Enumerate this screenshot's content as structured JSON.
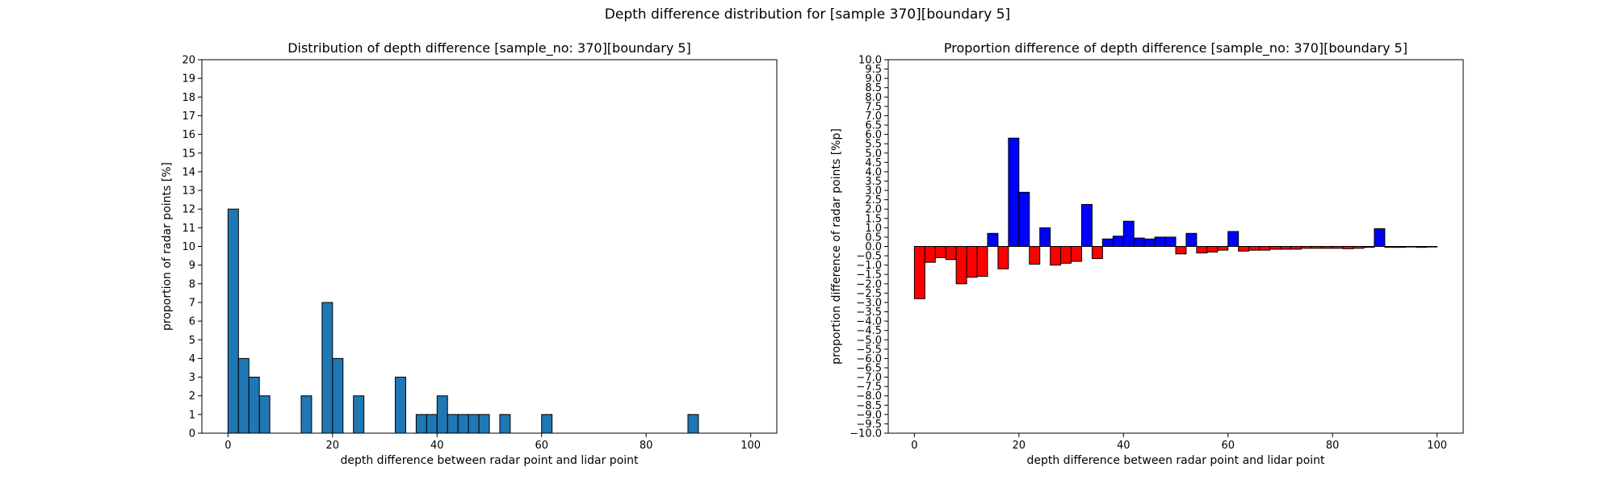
{
  "figure": {
    "suptitle": "Depth difference distribution for [sample 370][boundary 5]"
  },
  "chart_data": [
    {
      "type": "bar",
      "title": "Distribution of depth difference [sample_no: 370][boundary 5]",
      "xlabel": "depth difference between radar point and lidar point",
      "ylabel": "proportion of radar points [%]",
      "xlim": [
        -5,
        105
      ],
      "ylim": [
        0,
        20
      ],
      "xticks": [
        0,
        20,
        40,
        60,
        80,
        100
      ],
      "yticks": [
        0,
        1,
        2,
        3,
        4,
        5,
        6,
        7,
        8,
        9,
        10,
        11,
        12,
        13,
        14,
        15,
        16,
        17,
        18,
        19,
        20
      ],
      "bin_width": 2,
      "bars": [
        {
          "x": 0,
          "value": 12
        },
        {
          "x": 2,
          "value": 4
        },
        {
          "x": 4,
          "value": 3
        },
        {
          "x": 6,
          "value": 2
        },
        {
          "x": 14,
          "value": 2
        },
        {
          "x": 18,
          "value": 7
        },
        {
          "x": 20,
          "value": 4
        },
        {
          "x": 24,
          "value": 2
        },
        {
          "x": 32,
          "value": 3
        },
        {
          "x": 36,
          "value": 1
        },
        {
          "x": 38,
          "value": 1
        },
        {
          "x": 40,
          "value": 2
        },
        {
          "x": 42,
          "value": 1
        },
        {
          "x": 44,
          "value": 1
        },
        {
          "x": 46,
          "value": 1
        },
        {
          "x": 48,
          "value": 1
        },
        {
          "x": 52,
          "value": 1
        },
        {
          "x": 60,
          "value": 1
        },
        {
          "x": 88,
          "value": 1
        }
      ],
      "colors": {
        "bar": "#1f77b4",
        "edge": "#000000"
      },
      "grid": false
    },
    {
      "type": "bar",
      "title": "Proportion difference of depth difference [sample_no: 370][boundary 5]",
      "xlabel": "depth difference between radar point and lidar point",
      "ylabel": "proportion difference of radar points [%p]",
      "xlim": [
        -5,
        105
      ],
      "ylim": [
        -10,
        10
      ],
      "xticks": [
        0,
        20,
        40,
        60,
        80,
        100
      ],
      "yticks": [
        10.0,
        9.5,
        9.0,
        8.5,
        8.0,
        7.5,
        7.0,
        6.5,
        6.0,
        5.5,
        5.0,
        4.5,
        4.0,
        3.5,
        3.0,
        2.5,
        2.0,
        1.5,
        1.0,
        0.5,
        0.0,
        -0.5,
        -1.0,
        -1.5,
        -2.0,
        -2.5,
        -3.0,
        -3.5,
        -4.0,
        -4.5,
        -5.0,
        -5.5,
        -6.0,
        -6.5,
        -7.0,
        -7.5,
        -8.0,
        -8.5,
        -9.0,
        -9.5,
        -10.0
      ],
      "ytick_labels": [
        "10.0",
        "9.5",
        "9.0",
        "8.5",
        "8.0",
        "7.5",
        "7.0",
        "6.5",
        "6.0",
        "5.5",
        "5.0",
        "4.5",
        "4.0",
        "3.5",
        "3.0",
        "2.5",
        "2.0",
        "1.5",
        "1.0",
        "0.5",
        "0.0",
        "−0.5",
        "−1.0",
        "−1.5",
        "−2.0",
        "−2.5",
        "−3.0",
        "−3.5",
        "−4.0",
        "−4.5",
        "−5.0",
        "−5.5",
        "−6.0",
        "−6.5",
        "−7.0",
        "−7.5",
        "−8.0",
        "−8.5",
        "−9.0",
        "−9.5",
        "−10.0"
      ],
      "bin_width": 2,
      "bars": [
        {
          "x": 0,
          "value": -2.8
        },
        {
          "x": 2,
          "value": -0.85
        },
        {
          "x": 4,
          "value": -0.6
        },
        {
          "x": 6,
          "value": -0.7
        },
        {
          "x": 8,
          "value": -2.0
        },
        {
          "x": 10,
          "value": -1.65
        },
        {
          "x": 12,
          "value": -1.6
        },
        {
          "x": 14,
          "value": 0.7
        },
        {
          "x": 16,
          "value": -1.2
        },
        {
          "x": 18,
          "value": 5.8
        },
        {
          "x": 20,
          "value": 2.9
        },
        {
          "x": 22,
          "value": -0.95
        },
        {
          "x": 24,
          "value": 1.0
        },
        {
          "x": 26,
          "value": -1.0
        },
        {
          "x": 28,
          "value": -0.9
        },
        {
          "x": 30,
          "value": -0.8
        },
        {
          "x": 32,
          "value": 2.25
        },
        {
          "x": 34,
          "value": -0.65
        },
        {
          "x": 36,
          "value": 0.4
        },
        {
          "x": 38,
          "value": 0.55
        },
        {
          "x": 40,
          "value": 1.35
        },
        {
          "x": 42,
          "value": 0.45
        },
        {
          "x": 44,
          "value": 0.4
        },
        {
          "x": 46,
          "value": 0.5
        },
        {
          "x": 48,
          "value": 0.5
        },
        {
          "x": 50,
          "value": -0.4
        },
        {
          "x": 52,
          "value": 0.7
        },
        {
          "x": 54,
          "value": -0.35
        },
        {
          "x": 56,
          "value": -0.3
        },
        {
          "x": 58,
          "value": -0.2
        },
        {
          "x": 60,
          "value": 0.8
        },
        {
          "x": 62,
          "value": -0.25
        },
        {
          "x": 64,
          "value": -0.2
        },
        {
          "x": 66,
          "value": -0.2
        },
        {
          "x": 68,
          "value": -0.15
        },
        {
          "x": 70,
          "value": -0.15
        },
        {
          "x": 72,
          "value": -0.15
        },
        {
          "x": 74,
          "value": -0.1
        },
        {
          "x": 76,
          "value": -0.1
        },
        {
          "x": 78,
          "value": -0.1
        },
        {
          "x": 80,
          "value": -0.1
        },
        {
          "x": 82,
          "value": -0.12
        },
        {
          "x": 84,
          "value": -0.1
        },
        {
          "x": 86,
          "value": -0.05
        },
        {
          "x": 88,
          "value": 0.95
        },
        {
          "x": 90,
          "value": -0.05
        },
        {
          "x": 92,
          "value": -0.05
        },
        {
          "x": 94,
          "value": -0.03
        },
        {
          "x": 96,
          "value": -0.05
        },
        {
          "x": 98,
          "value": -0.03
        }
      ],
      "colors": {
        "positive": "#0000ff",
        "negative": "#ff0000",
        "edge": "#000000"
      },
      "grid": false
    }
  ]
}
